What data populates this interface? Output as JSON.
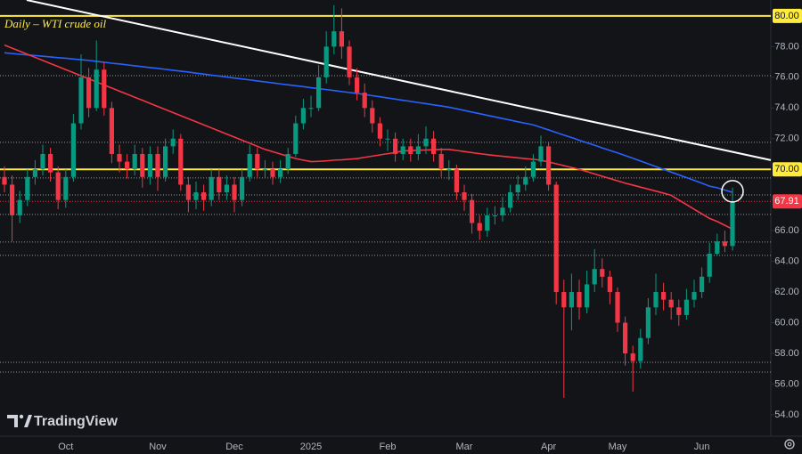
{
  "chart_data": {
    "type": "candlestick",
    "title": "Daily – WTI crude oil",
    "watermark": "TradingView",
    "categories": [
      null,
      null,
      null,
      null,
      null,
      null,
      null,
      null,
      "Oct",
      null,
      null,
      null,
      null,
      null,
      null,
      null,
      null,
      null,
      null,
      null,
      "Nov",
      null,
      null,
      null,
      null,
      null,
      null,
      null,
      null,
      null,
      "Dec",
      null,
      null,
      null,
      null,
      null,
      null,
      null,
      null,
      null,
      "2025",
      null,
      null,
      null,
      null,
      null,
      null,
      null,
      null,
      null,
      "Feb",
      null,
      null,
      null,
      null,
      null,
      null,
      null,
      null,
      null,
      "Mar",
      null,
      null,
      null,
      null,
      null,
      null,
      null,
      null,
      null,
      null,
      "Apr",
      null,
      null,
      null,
      null,
      null,
      null,
      null,
      null,
      "May",
      null,
      null,
      null,
      null,
      null,
      null,
      null,
      null,
      null,
      null,
      "Jun",
      null,
      null,
      null,
      null
    ],
    "open": [
      69.5,
      69,
      67,
      68,
      69.5,
      70,
      71,
      69.8,
      68,
      69.5,
      73,
      76,
      74,
      76.5,
      74,
      71,
      70.5,
      70,
      71,
      69.5,
      71,
      69.5,
      71.5,
      72,
      69,
      68,
      68.5,
      68,
      69.5,
      68.5,
      69,
      68,
      69.5,
      71,
      70,
      70,
      69.5,
      70,
      71,
      73,
      74,
      74,
      76,
      78,
      79,
      78,
      76,
      75,
      74,
      73,
      72,
      72,
      71,
      71.5,
      71,
      71.5,
      72,
      71,
      70,
      70,
      68.5,
      68,
      66.5,
      66,
      67,
      67,
      67.5,
      68.5,
      69,
      69.5,
      70.5,
      71.5,
      69,
      62,
      61,
      62,
      61,
      62.5,
      63.5,
      63,
      62,
      60,
      58,
      57.5,
      59,
      61,
      62,
      61.5,
      61,
      60.5,
      61.5,
      62,
      63,
      64.5,
      65.3,
      65
    ],
    "high": [
      70.2,
      69.6,
      68.6,
      70,
      70.6,
      71.6,
      71.4,
      70.2,
      70,
      73.6,
      77.5,
      76.6,
      78.4,
      77,
      74.4,
      71.6,
      71,
      71.6,
      71.4,
      71.5,
      71.5,
      72,
      72.6,
      72.3,
      69.5,
      69.2,
      69,
      70,
      70,
      69.6,
      69.5,
      70,
      71.6,
      71.4,
      70.6,
      70.5,
      70.6,
      71.4,
      73.5,
      74.6,
      74.8,
      76.8,
      79,
      80.7,
      80.5,
      78.4,
      76.6,
      75.6,
      74.5,
      73.4,
      72.6,
      72.4,
      72,
      72,
      72.3,
      72.8,
      72.5,
      71.4,
      70.6,
      70.3,
      69,
      68.4,
      67,
      67.5,
      67.6,
      68.2,
      69,
      69.6,
      70.2,
      71,
      72.2,
      71.8,
      69.2,
      62.8,
      63.2,
      62.8,
      63.4,
      64.8,
      64.2,
      63.4,
      62.3,
      60.4,
      58.5,
      59.6,
      61.6,
      63.2,
      62.6,
      62,
      61.5,
      62.2,
      62.8,
      63.6,
      65.2,
      65.8,
      66,
      68.8
    ],
    "low": [
      68.5,
      65.3,
      66.5,
      67.6,
      69,
      69.6,
      69.2,
      67.4,
      67.5,
      69.2,
      72.6,
      73.4,
      73.8,
      73.5,
      70.4,
      69.8,
      69.4,
      69.6,
      68.8,
      69,
      68.6,
      69.2,
      71,
      68.6,
      67.2,
      67.4,
      67.3,
      67.6,
      68,
      68,
      67.2,
      67.6,
      69.2,
      69.5,
      69.4,
      69,
      69.1,
      69.7,
      70.8,
      72.6,
      73.4,
      73.8,
      75.6,
      77.5,
      77.2,
      75.5,
      74.5,
      73.4,
      72.4,
      71.5,
      71.2,
      70.5,
      70.6,
      70.5,
      70.6,
      71,
      70.5,
      69.5,
      69.3,
      68,
      67.3,
      65.8,
      65.4,
      65.6,
      66.4,
      66.6,
      67.2,
      68,
      68.6,
      69.2,
      70.2,
      68.6,
      61.2,
      55.1,
      59.5,
      60.2,
      60.6,
      62,
      62.3,
      61.2,
      59.4,
      57.2,
      55.5,
      57,
      58.6,
      60.5,
      60.8,
      60.2,
      59.8,
      60.2,
      61,
      61.6,
      62.6,
      64.4,
      64.6,
      64.7
    ],
    "close": [
      69,
      67,
      68,
      69.5,
      70,
      71,
      69.8,
      68,
      69.5,
      73,
      76,
      74,
      76.5,
      74,
      71,
      70.5,
      70,
      71,
      69.5,
      71,
      69.5,
      71.5,
      72,
      69,
      68,
      68.5,
      68,
      69.5,
      68.5,
      69,
      68,
      69.5,
      71,
      70,
      70,
      69.5,
      70,
      71,
      73,
      74,
      74,
      76,
      78,
      79,
      78,
      76,
      75,
      74,
      73,
      72,
      72,
      71,
      71.5,
      71,
      71.5,
      72,
      71,
      70,
      70,
      68.5,
      68,
      66.5,
      66,
      67,
      67,
      67.5,
      68.5,
      69,
      69.5,
      70.5,
      71.5,
      69,
      62,
      61,
      62,
      61,
      62.5,
      63.5,
      63,
      62,
      60,
      58,
      57.5,
      59,
      61,
      62,
      61.5,
      61,
      60.5,
      61.5,
      62,
      63,
      64.5,
      65.3,
      65,
      67.91
    ],
    "up_color": "#089981",
    "down_color": "#f23645",
    "moving_averages": [
      {
        "color": "#2962ff",
        "values": [
          77.6,
          77.55,
          77.5,
          77.46,
          77.42,
          77.37,
          77.33,
          77.28,
          77.24,
          77.19,
          77.15,
          77.1,
          77.04,
          76.98,
          76.92,
          76.87,
          76.81,
          76.75,
          76.69,
          76.63,
          76.58,
          76.52,
          76.46,
          76.4,
          76.34,
          76.27,
          76.21,
          76.14,
          76.08,
          76.02,
          75.95,
          75.89,
          75.83,
          75.76,
          75.7,
          75.64,
          75.57,
          75.51,
          75.45,
          75.39,
          75.32,
          75.26,
          75.2,
          75.14,
          75.07,
          75.01,
          74.95,
          74.88,
          74.8,
          74.73,
          74.65,
          74.58,
          74.5,
          74.43,
          74.35,
          74.28,
          74.2,
          74.13,
          74.05,
          73.95,
          73.84,
          73.73,
          73.63,
          73.52,
          73.42,
          73.31,
          73.21,
          73.1,
          73.0,
          72.9,
          72.73,
          72.57,
          72.4,
          72.23,
          72.07,
          71.9,
          71.73,
          71.57,
          71.4,
          71.23,
          71.07,
          70.9,
          70.72,
          70.54,
          70.36,
          70.18,
          70.0,
          69.82,
          69.64,
          69.46,
          69.28,
          69.1,
          68.9,
          68.8,
          68.65,
          68.5
        ]
      },
      {
        "color": "#f23645",
        "values": [
          78.1,
          77.9,
          77.7,
          77.5,
          77.3,
          77.1,
          76.9,
          76.7,
          76.5,
          76.3,
          76.1,
          75.9,
          75.7,
          75.5,
          75.3,
          75.1,
          74.9,
          74.7,
          74.5,
          74.3,
          74.1,
          73.9,
          73.7,
          73.5,
          73.3,
          73.1,
          72.9,
          72.7,
          72.5,
          72.3,
          72.1,
          71.9,
          71.7,
          71.5,
          71.3,
          71.15,
          71.0,
          70.85,
          70.7,
          70.6,
          70.5,
          70.52,
          70.55,
          70.6,
          70.62,
          70.66,
          70.7,
          70.78,
          70.86,
          70.94,
          71.02,
          71.1,
          71.2,
          71.22,
          71.24,
          71.26,
          71.28,
          71.3,
          71.3,
          71.23,
          71.16,
          71.09,
          71.02,
          70.96,
          70.9,
          70.85,
          70.8,
          70.75,
          70.7,
          70.65,
          70.6,
          70.48,
          70.36,
          70.24,
          70.12,
          70.0,
          69.85,
          69.7,
          69.55,
          69.4,
          69.25,
          69.1,
          68.97,
          68.84,
          68.71,
          68.58,
          68.45,
          68.3,
          68.0,
          67.7,
          67.4,
          67.1,
          66.8,
          66.6,
          66.35,
          66.1
        ]
      }
    ],
    "hlines": [
      {
        "value": 80,
        "color": "#ffeb3b"
      },
      {
        "value": 70,
        "color": "#ffeb3b"
      }
    ],
    "levels": [
      76.11,
      71.76,
      69.44,
      68.33,
      67.06,
      65.26,
      64.39,
      57.42,
      56.78
    ],
    "trendline": {
      "color": "#ffffff",
      "points": [
        [
          2.9,
          81.04
        ],
        [
          100,
          70.6
        ]
      ]
    },
    "ylim": [
      52.6,
      81.04
    ],
    "yticks": [
      {
        "value": 54,
        "label": "54.00"
      },
      {
        "value": 56,
        "label": "56.00"
      },
      {
        "value": 58,
        "label": "58.00"
      },
      {
        "value": 60,
        "label": "60.00"
      },
      {
        "value": 62,
        "label": "62.00"
      },
      {
        "value": 64,
        "label": "64.00"
      },
      {
        "value": 66,
        "label": "66.00"
      },
      {
        "value": 68,
        "label": "68.00"
      },
      {
        "value": 70,
        "label": "70.00"
      },
      {
        "value": 72,
        "label": "72.00"
      },
      {
        "value": 74,
        "label": "74.00"
      },
      {
        "value": 76,
        "label": "76.00"
      },
      {
        "value": 78,
        "label": "78.00"
      },
      {
        "value": 80,
        "label": "80.00"
      }
    ],
    "grid": false
  }
}
